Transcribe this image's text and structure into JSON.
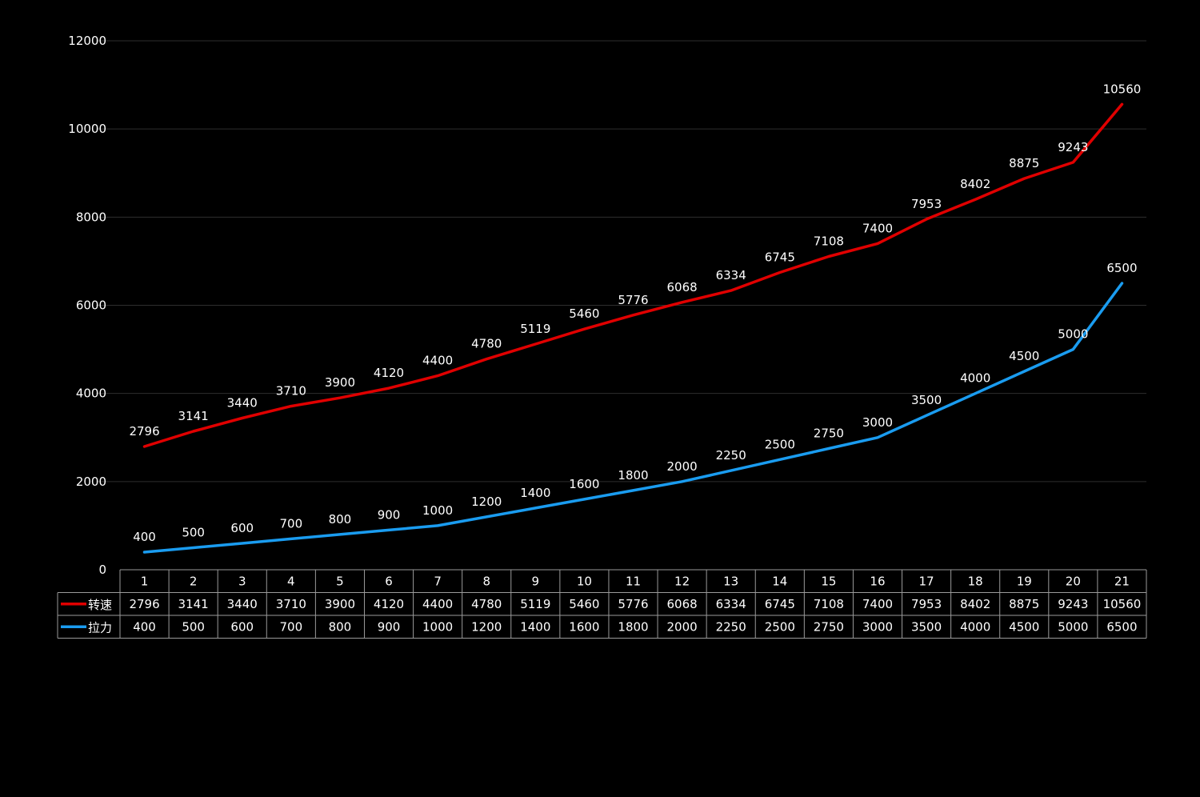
{
  "chart_data": {
    "type": "line",
    "categories": [
      "1",
      "2",
      "3",
      "4",
      "5",
      "6",
      "7",
      "8",
      "9",
      "10",
      "11",
      "12",
      "13",
      "14",
      "15",
      "16",
      "17",
      "18",
      "19",
      "20",
      "21"
    ],
    "series": [
      {
        "name": "转速",
        "color": "#e00000",
        "values": [
          2796,
          3141,
          3440,
          3710,
          3900,
          4120,
          4400,
          4780,
          5119,
          5460,
          5776,
          6068,
          6334,
          6745,
          7108,
          7400,
          7953,
          8402,
          8875,
          9243,
          10560
        ]
      },
      {
        "name": "拉力",
        "color": "#1a9cf0",
        "values": [
          400,
          500,
          600,
          700,
          800,
          900,
          1000,
          1200,
          1400,
          1600,
          1800,
          2000,
          2250,
          2500,
          2750,
          3000,
          3500,
          4000,
          4500,
          5000,
          6500
        ]
      }
    ],
    "ylim": [
      0,
      12000
    ],
    "yticks": [
      0,
      2000,
      4000,
      6000,
      8000,
      10000,
      12000
    ],
    "grid": true,
    "data_labels": true,
    "data_table": true,
    "background": "#000000"
  }
}
